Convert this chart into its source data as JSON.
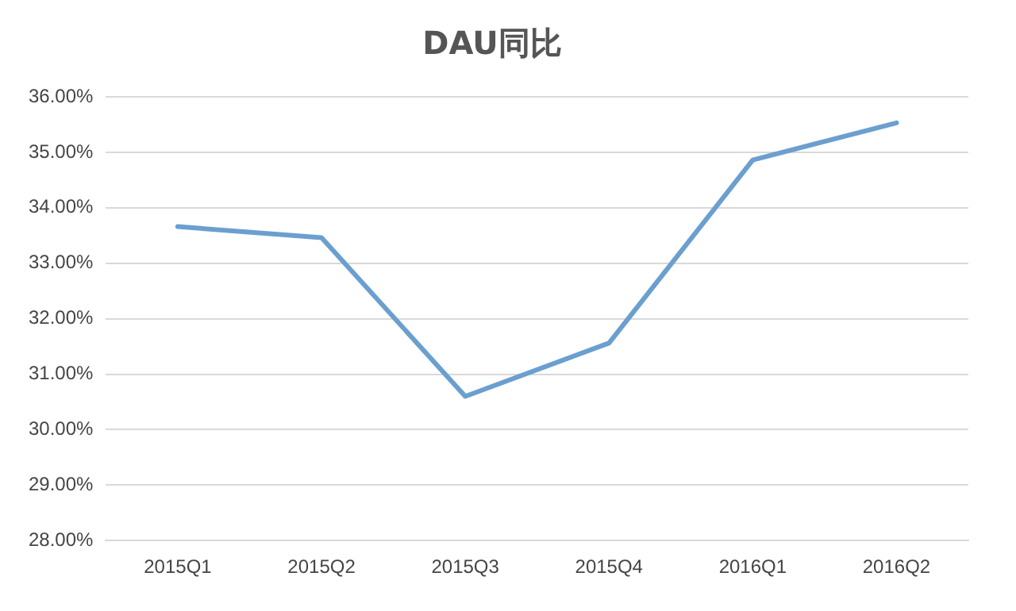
{
  "chart_data": {
    "type": "line",
    "title": "DAU同比",
    "categories": [
      "2015Q1",
      "2015Q2",
      "2015Q3",
      "2015Q4",
      "2016Q1",
      "2016Q2"
    ],
    "series": [
      {
        "color": "#6b9fcf",
        "values": [
          33.66,
          33.46,
          30.6,
          31.56,
          34.86,
          35.53
        ]
      }
    ],
    "ylim": [
      28,
      36
    ],
    "yticks": [
      {
        "value": 28,
        "label": "28.00%"
      },
      {
        "value": 29,
        "label": "29.00%"
      },
      {
        "value": 30,
        "label": "30.00%"
      },
      {
        "value": 31,
        "label": "31.00%"
      },
      {
        "value": 32,
        "label": "32.00%"
      },
      {
        "value": 33,
        "label": "33.00%"
      },
      {
        "value": 34,
        "label": "34.00%"
      },
      {
        "value": 35,
        "label": "35.00%"
      },
      {
        "value": 36,
        "label": "36.00%"
      }
    ],
    "grid": "y",
    "legend": false,
    "marker": "none",
    "line_style": "solid"
  }
}
